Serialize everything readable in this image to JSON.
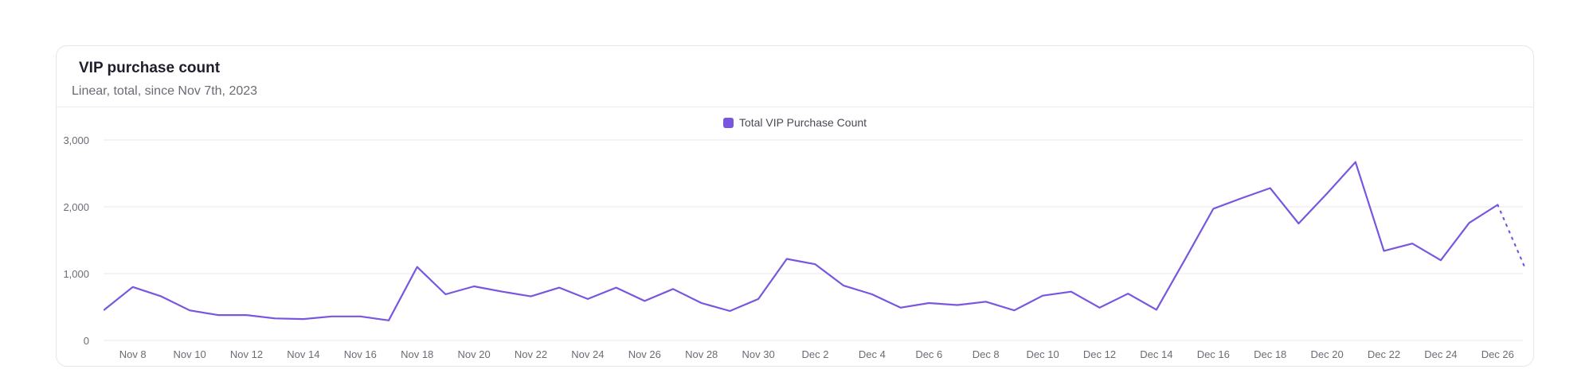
{
  "card": {
    "title": "VIP purchase count",
    "subtitle": "Linear, total, since Nov 7th, 2023"
  },
  "colors": {
    "series": "#7856e0",
    "grid": "#e8e8ec",
    "axis_text": "#6b6b75"
  },
  "chart_data": {
    "type": "line",
    "title": "VIP purchase count",
    "subtitle": "Linear, total, since Nov 7th, 2023",
    "xlabel": "",
    "ylabel": "",
    "ylim": [
      0,
      3000
    ],
    "yticks": [
      0,
      1000,
      2000,
      3000
    ],
    "ytick_labels": [
      "0",
      "1,000",
      "2,000",
      "3,000"
    ],
    "xtick_labels": [
      "Nov 8",
      "Nov 10",
      "Nov 12",
      "Nov 14",
      "Nov 16",
      "Nov 18",
      "Nov 20",
      "Nov 22",
      "Nov 24",
      "Nov 26",
      "Nov 28",
      "Nov 30",
      "Dec 2",
      "Dec 4",
      "Dec 6",
      "Dec 8",
      "Dec 10",
      "Dec 12",
      "Dec 14",
      "Dec 16",
      "Dec 18",
      "Dec 20",
      "Dec 22",
      "Dec 24",
      "Dec 26"
    ],
    "grid": true,
    "legend_position": "top-center",
    "x": [
      "Nov 7",
      "Nov 8",
      "Nov 9",
      "Nov 10",
      "Nov 11",
      "Nov 12",
      "Nov 13",
      "Nov 14",
      "Nov 15",
      "Nov 16",
      "Nov 17",
      "Nov 18",
      "Nov 19",
      "Nov 20",
      "Nov 21",
      "Nov 22",
      "Nov 23",
      "Nov 24",
      "Nov 25",
      "Nov 26",
      "Nov 27",
      "Nov 28",
      "Nov 29",
      "Nov 30",
      "Dec 1",
      "Dec 2",
      "Dec 3",
      "Dec 4",
      "Dec 5",
      "Dec 6",
      "Dec 7",
      "Dec 8",
      "Dec 9",
      "Dec 10",
      "Dec 11",
      "Dec 12",
      "Dec 13",
      "Dec 14",
      "Dec 15",
      "Dec 16",
      "Dec 17",
      "Dec 18",
      "Dec 19",
      "Dec 20",
      "Dec 21",
      "Dec 22",
      "Dec 23",
      "Dec 24",
      "Dec 25",
      "Dec 26",
      "Dec 27"
    ],
    "series": [
      {
        "name": "Total VIP Purchase Count",
        "color": "#7856e0",
        "values": [
          460,
          800,
          660,
          450,
          380,
          380,
          330,
          320,
          360,
          360,
          300,
          1100,
          690,
          810,
          730,
          660,
          790,
          620,
          790,
          590,
          770,
          560,
          440,
          620,
          1220,
          1140,
          820,
          690,
          490,
          560,
          530,
          580,
          450,
          670,
          730,
          490,
          700,
          460,
          1210,
          1970,
          2130,
          2280,
          1750,
          2200,
          2670,
          1340,
          1450,
          1200,
          1760,
          2030,
          1050
        ],
        "last_point_partial": true
      }
    ]
  }
}
